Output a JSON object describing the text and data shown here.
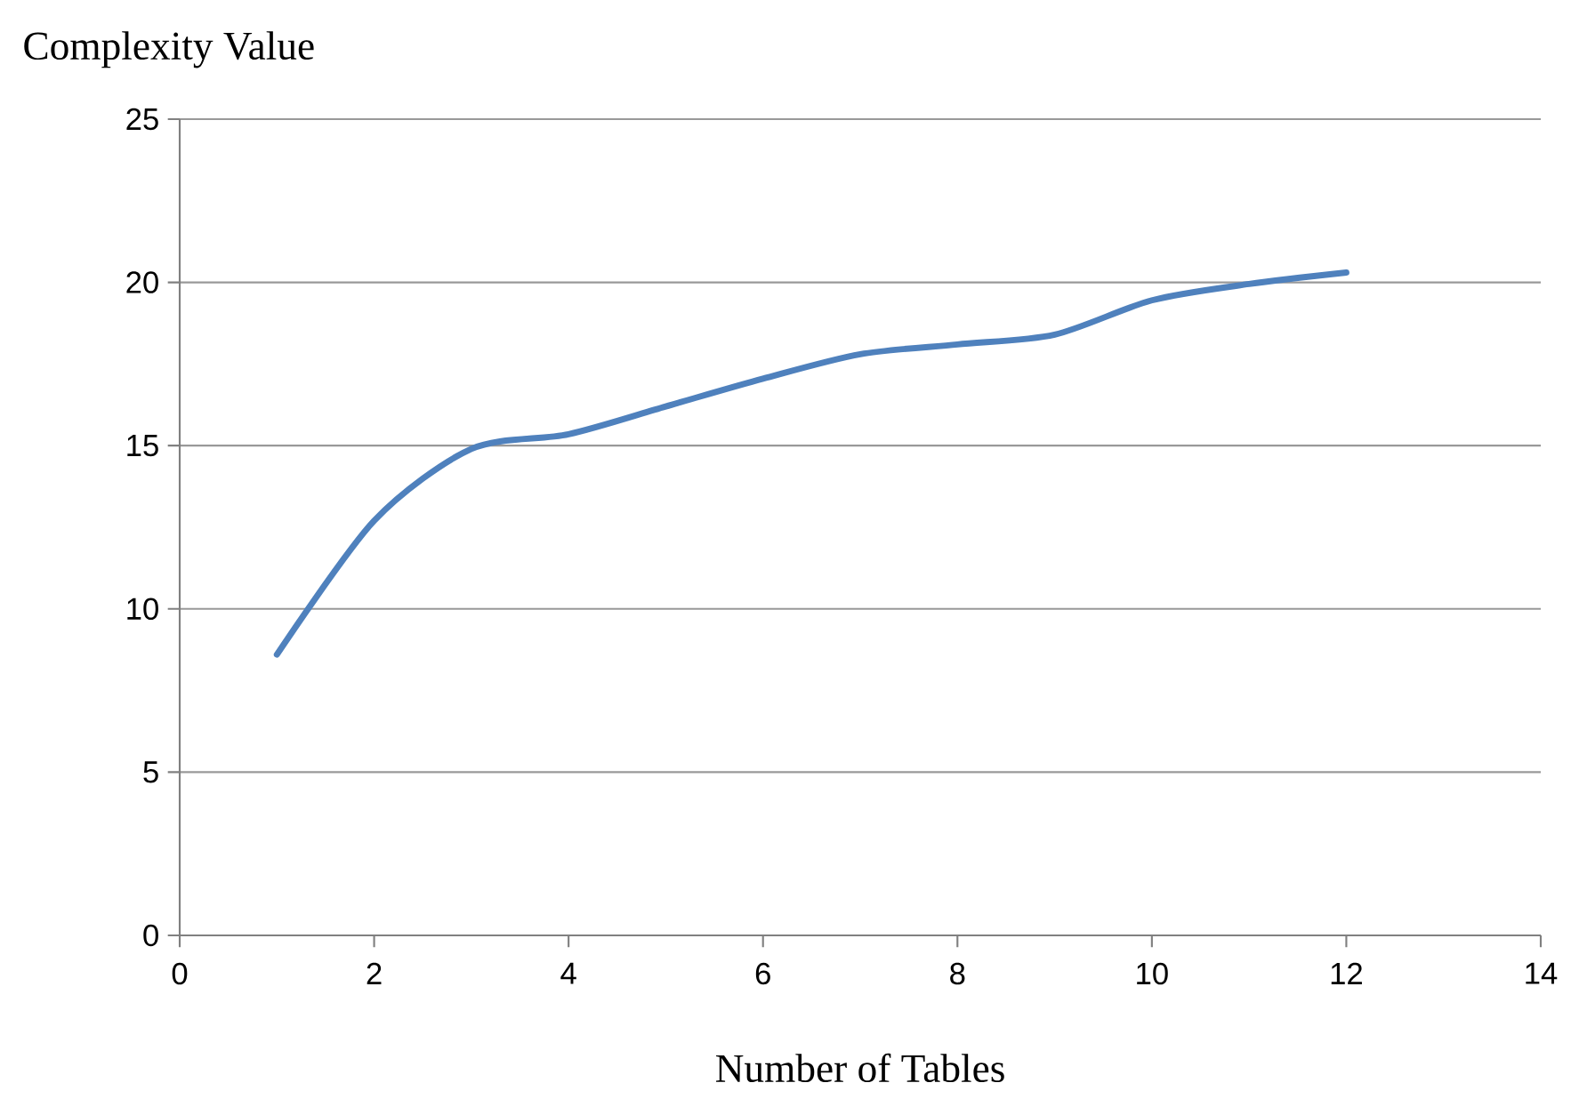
{
  "chart_data": {
    "type": "line",
    "xlabel": "Number of Tables",
    "ylabel": "Complexity Value",
    "x": [
      1,
      2,
      3,
      4,
      5,
      6,
      7,
      8,
      9,
      10,
      11,
      12
    ],
    "series": [
      {
        "color": "#4f81bd",
        "values": [
          8.6,
          12.7,
          14.9,
          15.35,
          16.2,
          17.05,
          17.8,
          18.1,
          18.4,
          19.45,
          19.95,
          20.3
        ]
      }
    ],
    "xlim": [
      0,
      14
    ],
    "xticks": [
      0,
      2,
      4,
      6,
      8,
      10,
      12,
      14
    ],
    "ylim": [
      0,
      25
    ],
    "yticks": [
      0,
      5,
      10,
      15,
      20,
      25
    ],
    "grid": "y",
    "marker": "none",
    "line_style": "solid"
  }
}
